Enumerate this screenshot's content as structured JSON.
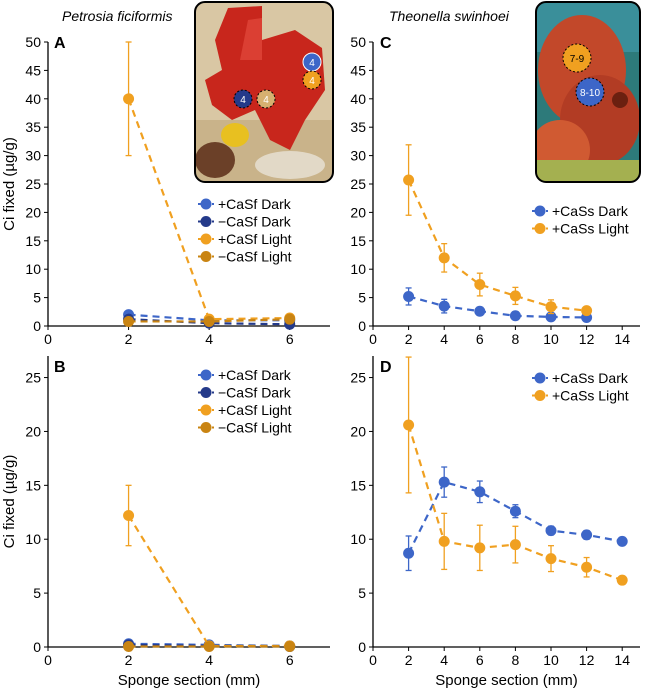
{
  "figure": {
    "species_left": "Petrosia ficiformis",
    "species_right": "Theonella swinhoei",
    "photo_left_labels": [
      "4",
      "4",
      "4",
      "4"
    ],
    "photo_right_labels": [
      "7-9",
      "8-10"
    ]
  },
  "colors": {
    "plus_dark": "#3d66c8",
    "minus_dark": "#243a8a",
    "plus_light": "#f0a020",
    "minus_light": "#c98412"
  },
  "chart_data": [
    {
      "panel": "A",
      "type": "line",
      "title": "Petrosia ficiformis",
      "xlabel": "",
      "ylabel": "Ci fixed (µg/g)",
      "xlim": [
        0,
        7
      ],
      "ylim": [
        0,
        50
      ],
      "xticks": [
        0,
        2,
        4,
        6
      ],
      "yticks": [
        0,
        5,
        10,
        15,
        20,
        25,
        30,
        35,
        40,
        45,
        50
      ],
      "legend_position": "right",
      "series": [
        {
          "name": "+CaSf Dark",
          "color_key": "plus_dark",
          "x": [
            2,
            4,
            6
          ],
          "y": [
            2.0,
            1.0,
            1.0
          ],
          "err": [
            0,
            0,
            0
          ]
        },
        {
          "name": "−CaSf Dark",
          "color_key": "minus_dark",
          "x": [
            2,
            4,
            6
          ],
          "y": [
            1.2,
            0.5,
            0.3
          ],
          "err": [
            0,
            0,
            0
          ]
        },
        {
          "name": "+CaSf Light",
          "color_key": "plus_light",
          "x": [
            2,
            4,
            6
          ],
          "y": [
            40.0,
            1.2,
            1.4
          ],
          "err": [
            10.0,
            0,
            0
          ]
        },
        {
          "name": "−CaSf Light",
          "color_key": "minus_light",
          "x": [
            2,
            4,
            6
          ],
          "y": [
            0.8,
            0.8,
            1.2
          ],
          "err": [
            0,
            0,
            0
          ]
        }
      ]
    },
    {
      "panel": "B",
      "type": "line",
      "xlabel": "Sponge section (mm)",
      "ylabel": "Ci fixed (µg/g)",
      "xlim": [
        0,
        7
      ],
      "ylim": [
        0,
        27
      ],
      "xticks": [
        0,
        2,
        4,
        6
      ],
      "yticks": [
        0,
        5,
        10,
        15,
        20,
        25
      ],
      "legend_position": "right",
      "series": [
        {
          "name": "+CaSf Dark",
          "color_key": "plus_dark",
          "x": [
            2,
            4,
            6
          ],
          "y": [
            0.3,
            0.2,
            0.1
          ],
          "err": [
            0,
            0,
            0
          ]
        },
        {
          "name": "−CaSf Dark",
          "color_key": "minus_dark",
          "x": [
            2,
            4,
            6
          ],
          "y": [
            0.2,
            0.1,
            0.05
          ],
          "err": [
            0,
            0,
            0
          ]
        },
        {
          "name": "+CaSf Light",
          "color_key": "plus_light",
          "x": [
            2,
            4,
            6
          ],
          "y": [
            12.2,
            0.1,
            0.1
          ],
          "err": [
            2.8,
            0,
            0
          ]
        },
        {
          "name": "−CaSf Light",
          "color_key": "minus_light",
          "x": [
            2,
            4,
            6
          ],
          "y": [
            0.05,
            0.05,
            0.05
          ],
          "err": [
            0,
            0,
            0
          ]
        }
      ]
    },
    {
      "panel": "C",
      "type": "line",
      "title": "Theonella swinhoei",
      "xlabel": "",
      "ylabel": "",
      "xlim": [
        0,
        15
      ],
      "ylim": [
        0,
        50
      ],
      "xticks": [
        0,
        2,
        4,
        6,
        8,
        10,
        12,
        14
      ],
      "yticks": [
        0,
        5,
        10,
        15,
        20,
        25,
        30,
        35,
        40,
        45,
        50
      ],
      "legend_position": "right",
      "series": [
        {
          "name": "+CaSs Dark",
          "color_key": "plus_dark",
          "x": [
            2,
            4,
            6,
            8,
            10,
            12
          ],
          "y": [
            5.2,
            3.5,
            2.6,
            1.8,
            1.6,
            1.5
          ],
          "err": [
            1.5,
            1.2,
            0.6,
            0.4,
            0.3,
            0.3
          ]
        },
        {
          "name": "+CaSs Light",
          "color_key": "plus_light",
          "x": [
            2,
            4,
            6,
            8,
            10,
            12
          ],
          "y": [
            25.7,
            12.0,
            7.3,
            5.3,
            3.4,
            2.7
          ],
          "err": [
            6.2,
            2.5,
            2.0,
            1.5,
            1.2,
            0.6
          ]
        }
      ]
    },
    {
      "panel": "D",
      "type": "line",
      "xlabel": "Sponge section (mm)",
      "ylabel": "",
      "xlim": [
        0,
        15
      ],
      "ylim": [
        0,
        27
      ],
      "xticks": [
        0,
        2,
        4,
        6,
        8,
        10,
        12,
        14
      ],
      "yticks": [
        0,
        5,
        10,
        15,
        20,
        25
      ],
      "legend_position": "right",
      "series": [
        {
          "name": "+CaSs Dark",
          "color_key": "plus_dark",
          "x": [
            2,
            4,
            6,
            8,
            10,
            12,
            14
          ],
          "y": [
            8.7,
            15.3,
            14.4,
            12.6,
            10.8,
            10.4,
            9.8
          ],
          "err": [
            1.6,
            1.4,
            1.0,
            0.6,
            0.4,
            0.4,
            0.3
          ]
        },
        {
          "name": "+CaSs Light",
          "color_key": "plus_light",
          "x": [
            2,
            4,
            6,
            8,
            10,
            12,
            14
          ],
          "y": [
            20.6,
            9.8,
            9.2,
            9.5,
            8.2,
            7.4,
            6.2
          ],
          "err": [
            6.3,
            2.6,
            2.1,
            1.7,
            1.2,
            0.9,
            0.3
          ]
        }
      ]
    }
  ]
}
